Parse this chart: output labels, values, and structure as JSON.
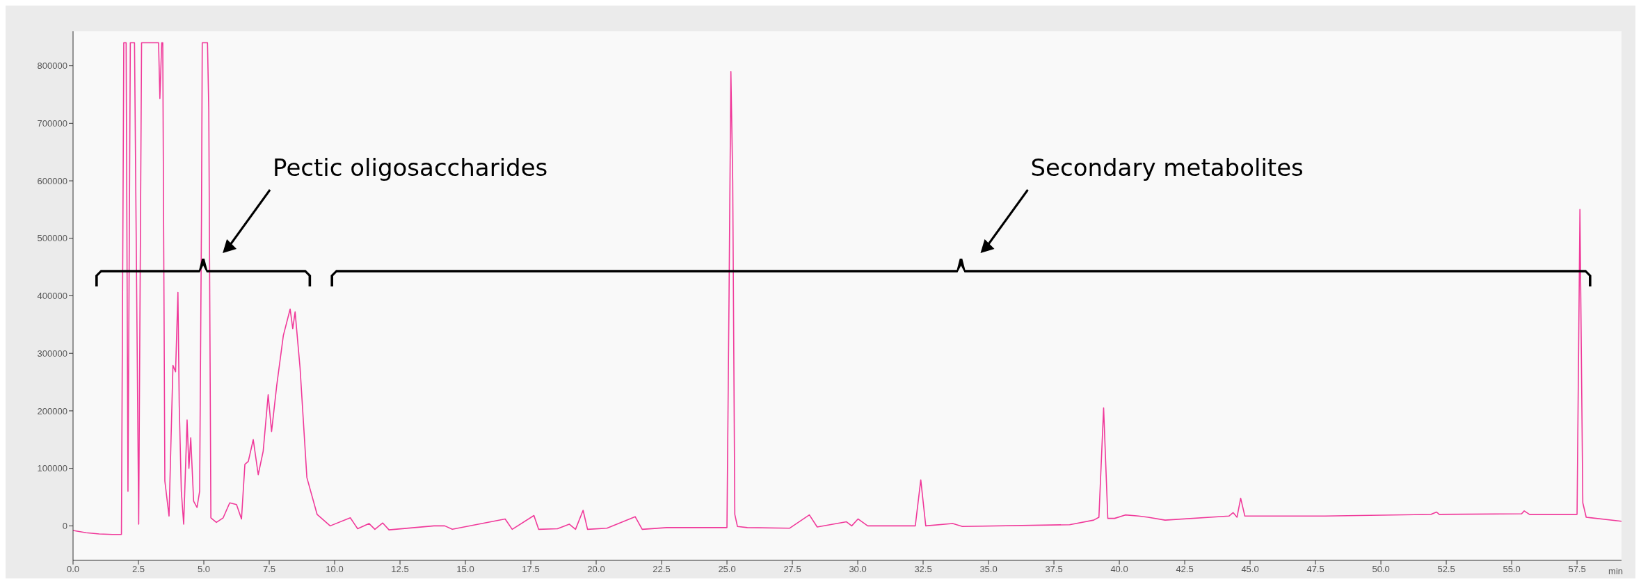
{
  "chart_data": {
    "type": "line",
    "xlabel": "min",
    "xlim": [
      0,
      59.2
    ],
    "ylim": [
      -60000,
      860000
    ],
    "xticks": [
      {
        "value": 0,
        "label": "0.0"
      },
      2.5,
      {
        "value": 5,
        "label": "5.0"
      },
      7.5,
      {
        "value": 10,
        "label": "10.0"
      },
      12.5,
      {
        "value": 15,
        "label": "15.0"
      },
      17.5,
      {
        "value": 20,
        "label": "20.0"
      },
      22.5,
      {
        "value": 25,
        "label": "25.0"
      },
      27.5,
      {
        "value": 30,
        "label": "30.0"
      },
      32.5,
      {
        "value": 35,
        "label": "35.0"
      },
      37.5,
      {
        "value": 40,
        "label": "40.0"
      },
      42.5,
      {
        "value": 45,
        "label": "45.0"
      },
      47.5,
      {
        "value": 50,
        "label": "50.0"
      },
      52.5,
      {
        "value": 55,
        "label": "55.0"
      },
      57.5
    ],
    "yticks": [
      0,
      100000,
      200000,
      300000,
      400000,
      500000,
      600000,
      700000,
      800000
    ],
    "grid": false,
    "legend": false,
    "marker": "none",
    "line_style": "solid",
    "annotations": [
      "Pectic oligosaccharides",
      "Secondary metabolites"
    ],
    "series": [
      {
        "color": "#f0399a",
        "x": [
          0,
          0.5,
          1.0,
          1.5,
          1.85,
          1.94,
          2.03,
          2.1,
          2.19,
          2.35,
          2.51,
          2.62,
          3.27,
          3.32,
          3.39,
          3.43,
          3.51,
          3.67,
          3.82,
          3.92,
          4.01,
          4.06,
          4.14,
          4.23,
          4.36,
          4.43,
          4.5,
          4.61,
          4.74,
          4.84,
          4.91,
          4.94,
          5.14,
          5.19,
          5.27,
          5.48,
          5.74,
          5.99,
          6.25,
          6.44,
          6.57,
          6.7,
          6.89,
          7.08,
          7.27,
          7.46,
          7.59,
          7.79,
          8.04,
          8.3,
          8.4,
          8.49,
          8.68,
          8.94,
          9.33,
          9.83,
          10.6,
          10.88,
          11.32,
          11.54,
          11.84,
          12.08,
          13.8,
          14.21,
          14.5,
          16.52,
          16.79,
          17.62,
          17.8,
          18.52,
          18.97,
          19.21,
          19.5,
          19.67,
          20.41,
          21.49,
          21.76,
          22.7,
          24.85,
          25.0,
          25.08,
          25.15,
          25.22,
          25.3,
          25.4,
          25.78,
          27.4,
          28.15,
          28.45,
          29.57,
          29.77,
          30.01,
          30.38,
          32.2,
          32.41,
          32.6,
          33.63,
          34.0,
          38.1,
          39.02,
          39.22,
          39.4,
          39.56,
          39.82,
          40.23,
          40.74,
          41.1,
          41.75,
          44.19,
          44.35,
          44.5,
          44.64,
          44.8,
          47.86,
          51.92,
          52.13,
          52.23,
          55.38,
          55.48,
          55.68,
          57.5,
          57.61,
          57.72,
          57.85,
          59.2
        ],
        "values": [
          -8000,
          -12000,
          -14000,
          -15000,
          -15000,
          840000,
          840000,
          60000,
          840000,
          840000,
          3000,
          840000,
          840000,
          743000,
          840000,
          840000,
          78000,
          17000,
          279000,
          268000,
          406000,
          210000,
          60000,
          3000,
          184000,
          100000,
          153000,
          43000,
          32000,
          60000,
          533000,
          840000,
          840000,
          723000,
          14000,
          6000,
          14000,
          40000,
          37000,
          12000,
          107000,
          112000,
          150000,
          89000,
          130000,
          228000,
          164000,
          245000,
          331000,
          377000,
          343000,
          372000,
          274000,
          84000,
          20000,
          0,
          14000,
          -5000,
          4000,
          -6000,
          5000,
          -7000,
          0,
          0,
          -6000,
          12000,
          -6000,
          18000,
          -6000,
          -5000,
          3000,
          -6000,
          27000,
          -6000,
          -4000,
          16000,
          -6000,
          -3000,
          -3000,
          -3000,
          400000,
          790000,
          600000,
          20000,
          -1000,
          -3000,
          -4000,
          19000,
          -2000,
          7000,
          0,
          12000,
          0,
          0,
          80000,
          0,
          4000,
          -1000,
          2000,
          10000,
          15000,
          205000,
          13000,
          13000,
          19000,
          17000,
          15000,
          10000,
          17000,
          23000,
          15000,
          48000,
          17000,
          17000,
          20000,
          24000,
          20000,
          21000,
          26000,
          20000,
          20000,
          550000,
          40000,
          15000,
          8000
        ]
      }
    ]
  }
}
